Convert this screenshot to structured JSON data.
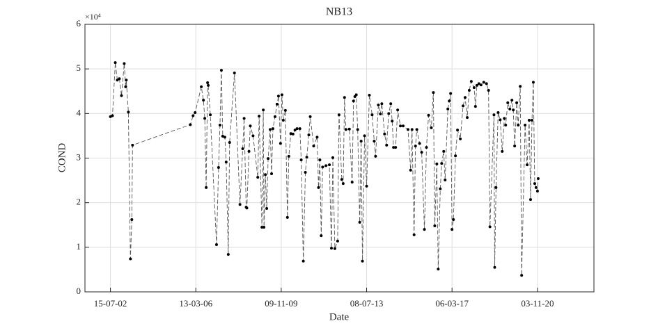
{
  "chart_data": {
    "type": "line",
    "title": "NB13",
    "xlabel": "Date",
    "ylabel": "COND",
    "y_exponent": "×10⁴",
    "color": "#555555",
    "marker_color": "#000000",
    "grid": true,
    "xlim": [
      "2001-06-11",
      "2023-04-06"
    ],
    "xticks": [
      {
        "value": "2002-07-15",
        "label": "15-07-02"
      },
      {
        "value": "2006-03-13",
        "label": "13-03-06"
      },
      {
        "value": "2009-11-09",
        "label": "09-11-09"
      },
      {
        "value": "2013-07-08",
        "label": "08-07-13"
      },
      {
        "value": "2017-03-06",
        "label": "06-03-17"
      },
      {
        "value": "2020-11-03",
        "label": "03-11-20"
      }
    ],
    "ylim": [
      0,
      60000
    ],
    "yticks": [
      0,
      {
        "value": 10000,
        "label": "1"
      },
      {
        "value": 20000,
        "label": "2"
      },
      {
        "value": 30000,
        "label": "3"
      },
      {
        "value": 40000,
        "label": "4"
      },
      {
        "value": 50000,
        "label": "5"
      },
      {
        "value": 60000,
        "label": "6"
      }
    ],
    "x": [
      "2002-07-15",
      "2002-08-16",
      "2002-09-29",
      "2002-10-31",
      "2002-12-02",
      "2003-01-04",
      "2003-02-16",
      "2003-03-10",
      "2003-03-20",
      "2003-04-22",
      "2003-05-24",
      "2003-06-15",
      "2003-06-26",
      "2005-12-17",
      "2006-01-29",
      "2006-03-02",
      "2006-06-07",
      "2006-07-10",
      "2006-07-31",
      "2006-08-22",
      "2006-09-13",
      "2006-09-23",
      "2006-10-26",
      "2007-01-31",
      "2007-03-04",
      "2007-03-26",
      "2007-04-17",
      "2007-05-08",
      "2007-06-10",
      "2007-07-01",
      "2007-08-03",
      "2007-08-24",
      "2007-11-08",
      "2008-02-02",
      "2008-03-16",
      "2008-04-07",
      "2008-05-09",
      "2008-05-20",
      "2008-06-22",
      "2008-07-13",
      "2008-08-25",
      "2008-11-07",
      "2008-11-28",
      "2009-01-11",
      "2009-02-01",
      "2009-02-12",
      "2009-03-06",
      "2009-03-27",
      "2009-04-18",
      "2009-05-20",
      "2009-06-11",
      "2009-07-02",
      "2009-08-04",
      "2009-09-05",
      "2009-09-27",
      "2009-10-29",
      "2009-11-20",
      "2009-12-11",
      "2010-01-13",
      "2010-02-14",
      "2010-03-08",
      "2010-04-09",
      "2010-05-12",
      "2010-06-13",
      "2010-07-15",
      "2010-08-28",
      "2010-09-18",
      "2010-10-21",
      "2010-11-22",
      "2010-12-14",
      "2011-01-15",
      "2011-02-06",
      "2011-04-01",
      "2011-05-25",
      "2011-06-16",
      "2011-07-07",
      "2011-07-28",
      "2011-08-19",
      "2011-10-10",
      "2011-12-03",
      "2012-01-04",
      "2012-01-26",
      "2012-02-27",
      "2012-04-10",
      "2012-05-02",
      "2012-06-14",
      "2012-07-06",
      "2012-07-27",
      "2012-08-18",
      "2012-10-11",
      "2012-11-23",
      "2012-12-15",
      "2013-01-05",
      "2013-01-27",
      "2013-02-18",
      "2013-03-22",
      "2013-04-13",
      "2013-05-04",
      "2013-06-06",
      "2013-07-08",
      "2013-08-20",
      "2013-10-02",
      "2013-11-04",
      "2013-11-25",
      "2014-01-08",
      "2014-02-09",
      "2014-03-03",
      "2014-04-15",
      "2014-05-17",
      "2014-06-19",
      "2014-07-21",
      "2014-08-12",
      "2014-09-02",
      "2014-10-05",
      "2014-11-06",
      "2014-12-19",
      "2015-01-31",
      "2015-04-17",
      "2015-05-28",
      "2015-06-19",
      "2015-07-21",
      "2015-08-12",
      "2015-09-02",
      "2015-10-15",
      "2015-11-17",
      "2015-12-30",
      "2016-01-31",
      "2016-03-04",
      "2016-04-16",
      "2016-05-18",
      "2016-06-09",
      "2016-07-11",
      "2016-08-02",
      "2016-09-03",
      "2016-09-25",
      "2016-10-27",
      "2016-11-18",
      "2016-12-31",
      "2017-01-22",
      "2017-02-12",
      "2017-03-06",
      "2017-03-28",
      "2017-04-29",
      "2017-05-31",
      "2017-07-14",
      "2017-08-26",
      "2017-09-27",
      "2017-10-30",
      "2017-12-01",
      "2018-01-02",
      "2018-02-15",
      "2018-03-08",
      "2018-03-30",
      "2018-05-01",
      "2018-06-03",
      "2018-07-16",
      "2018-08-28",
      "2018-09-29",
      "2018-10-21",
      "2018-12-23",
      "2019-01-03",
      "2019-01-24",
      "2019-02-26",
      "2019-03-30",
      "2019-05-01",
      "2019-06-03",
      "2019-06-24",
      "2019-07-27",
      "2019-08-28",
      "2019-09-30",
      "2019-10-21",
      "2019-11-12",
      "2019-12-14",
      "2020-01-06",
      "2020-02-07",
      "2020-02-29",
      "2020-04-23",
      "2020-05-25",
      "2020-06-26",
      "2020-07-18",
      "2020-08-09",
      "2020-08-30",
      "2020-09-21",
      "2020-10-12",
      "2020-11-03",
      "2020-11-14"
    ],
    "values": [
      39300,
      39500,
      51400,
      47500,
      47800,
      44000,
      51200,
      46000,
      47500,
      40300,
      7400,
      16200,
      32900,
      37500,
      39500,
      40200,
      46000,
      43000,
      38900,
      23400,
      46900,
      46300,
      39700,
      10600,
      27900,
      37400,
      49700,
      34900,
      34700,
      29100,
      8400,
      33500,
      49100,
      19600,
      32100,
      38900,
      19000,
      18800,
      31500,
      37200,
      35000,
      25700,
      39400,
      14500,
      40800,
      14500,
      26300,
      18700,
      29900,
      36400,
      26500,
      36600,
      39300,
      42100,
      43900,
      33300,
      44200,
      38500,
      40700,
      16700,
      30400,
      35500,
      35400,
      36300,
      36600,
      36600,
      29600,
      6900,
      26800,
      30200,
      35200,
      39300,
      32700,
      34700,
      23400,
      29600,
      12600,
      28000,
      28300,
      28500,
      9800,
      30100,
      9700,
      11400,
      39700,
      25200,
      24300,
      43600,
      36400,
      36500,
      24600,
      42800,
      43800,
      44200,
      36400,
      15600,
      33800,
      6900,
      35000,
      23700,
      44100,
      39700,
      33800,
      30400,
      41900,
      39900,
      42200,
      35400,
      32900,
      40000,
      42200,
      38300,
      32400,
      32400,
      40800,
      37200,
      37200,
      36400,
      27300,
      36400,
      12800,
      32700,
      36400,
      33300,
      31300,
      14000,
      32400,
      39600,
      36800,
      44700,
      14800,
      28700,
      5100,
      23100,
      28800,
      31500,
      25100,
      41000,
      42800,
      44500,
      14000,
      16200,
      30500,
      36300,
      34300,
      41700,
      43600,
      39100,
      45200,
      47200,
      45800,
      41600,
      46300,
      46700,
      46400,
      47000,
      46700,
      45200,
      14600,
      39700,
      5500,
      23400,
      40200,
      38600,
      31500,
      38900,
      37400,
      42400,
      41000,
      43000,
      40800,
      32700,
      42400,
      37400,
      46100,
      3700,
      37400,
      28500,
      38500,
      20700,
      38500,
      47000,
      24300,
      23400,
      22600,
      25400
    ]
  }
}
